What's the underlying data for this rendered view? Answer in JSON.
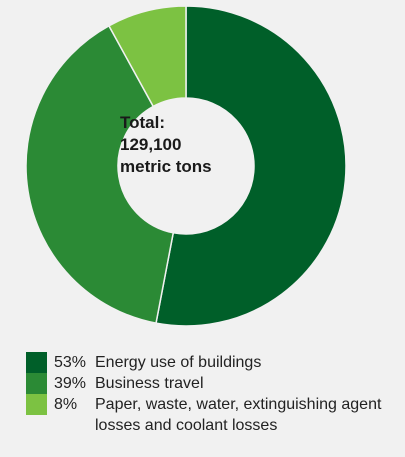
{
  "chart_data": {
    "type": "pie",
    "donut": true,
    "center_label": {
      "line1": "Total:",
      "line2": "129,100",
      "line3": "metric tons"
    },
    "slices": [
      {
        "percent_label": "53%",
        "value": 53,
        "label": "Energy use of buildings",
        "color": "#005f29"
      },
      {
        "percent_label": "39%",
        "value": 39,
        "label": "Business travel",
        "color": "#2b8a35"
      },
      {
        "percent_label": "8%",
        "value": 8,
        "label": "Paper, waste, water, extinguishing agent losses and coolant losses",
        "color": "#7cc242"
      }
    ],
    "legend_position": "bottom"
  },
  "colors": {
    "background": "#f1f1f1",
    "donut_hole": "#f1f1f1"
  }
}
